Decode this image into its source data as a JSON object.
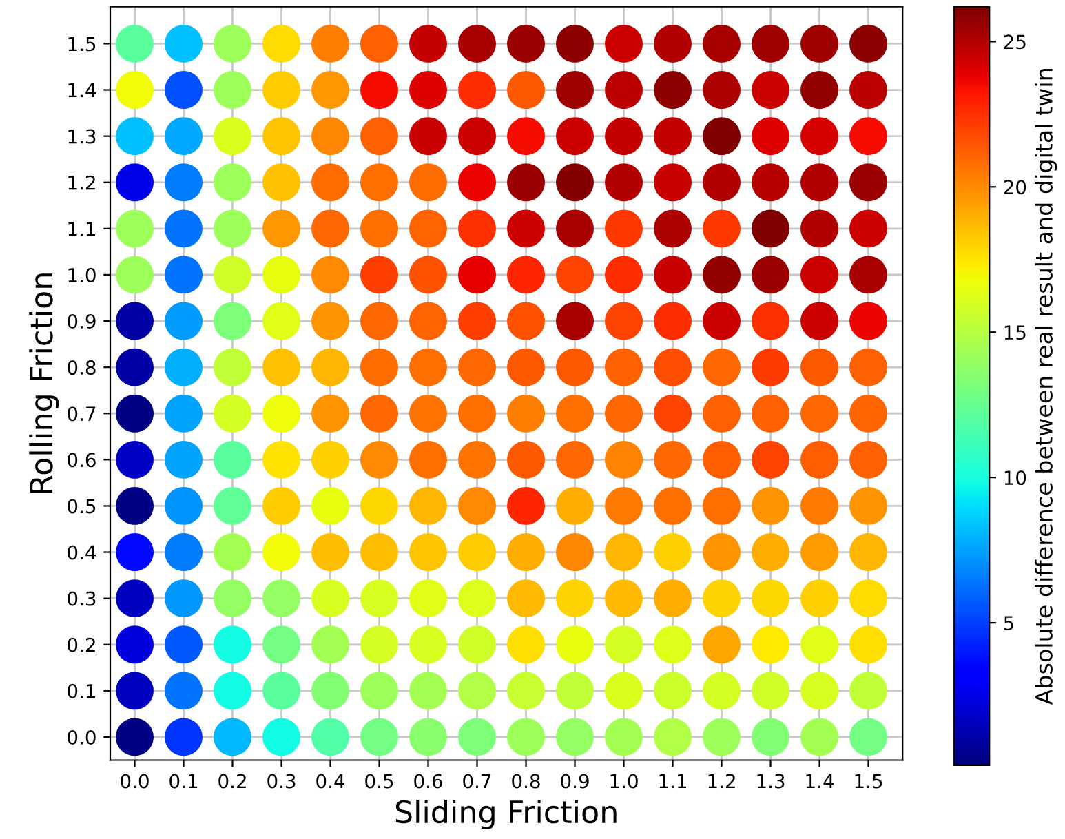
{
  "chart_data": {
    "type": "scatter",
    "xlabel": "Sliding Friction",
    "ylabel": "Rolling Friction",
    "clabel": "Absolute difference between real result and digital twin",
    "clim": [
      0.1,
      26.2
    ],
    "cticks": [
      5,
      10,
      15,
      20,
      25
    ],
    "xlim": [
      -0.05,
      1.57
    ],
    "ylim": [
      -0.05,
      1.58
    ],
    "xticks": [
      {
        "value": 0,
        "label": "0.0"
      },
      0.1,
      0.2,
      0.3,
      0.4,
      0.5,
      0.6,
      0.7,
      0.8,
      0.9,
      {
        "value": 1,
        "label": "1.0"
      },
      1.1,
      1.2,
      1.3,
      1.4,
      1.5
    ],
    "yticks": [
      {
        "value": 0,
        "label": "0.0"
      },
      0.1,
      0.2,
      0.3,
      0.4,
      0.5,
      0.6,
      0.7,
      0.8,
      0.9,
      {
        "value": 1,
        "label": "1.0"
      },
      1.1,
      1.2,
      1.3,
      1.4,
      1.5
    ],
    "grid": true,
    "marker": "circle",
    "x": [
      0.0,
      0.1,
      0.2,
      0.3,
      0.4,
      0.5,
      0.6,
      0.7,
      0.8,
      0.9,
      1.0,
      1.1,
      1.2,
      1.3,
      1.4,
      1.5,
      0.0,
      0.1,
      0.2,
      0.3,
      0.4,
      0.5,
      0.6,
      0.7,
      0.8,
      0.9,
      1.0,
      1.1,
      1.2,
      1.3,
      1.4,
      1.5,
      0.0,
      0.1,
      0.2,
      0.3,
      0.4,
      0.5,
      0.6,
      0.7,
      0.8,
      0.9,
      1.0,
      1.1,
      1.2,
      1.3,
      1.4,
      1.5,
      0.0,
      0.1,
      0.2,
      0.3,
      0.4,
      0.5,
      0.6,
      0.7,
      0.8,
      0.9,
      1.0,
      1.1,
      1.2,
      1.3,
      1.4,
      1.5,
      0.0,
      0.1,
      0.2,
      0.3,
      0.4,
      0.5,
      0.6,
      0.7,
      0.8,
      0.9,
      1.0,
      1.1,
      1.2,
      1.3,
      1.4,
      1.5,
      0.0,
      0.1,
      0.2,
      0.3,
      0.4,
      0.5,
      0.6,
      0.7,
      0.8,
      0.9,
      1.0,
      1.1,
      1.2,
      1.3,
      1.4,
      1.5,
      0.0,
      0.1,
      0.2,
      0.3,
      0.4,
      0.5,
      0.6,
      0.7,
      0.8,
      0.9,
      1.0,
      1.1,
      1.2,
      1.3,
      1.4,
      1.5,
      0.0,
      0.1,
      0.2,
      0.3,
      0.4,
      0.5,
      0.6,
      0.7,
      0.8,
      0.9,
      1.0,
      1.1,
      1.2,
      1.3,
      1.4,
      1.5,
      0.0,
      0.1,
      0.2,
      0.3,
      0.4,
      0.5,
      0.6,
      0.7,
      0.8,
      0.9,
      1.0,
      1.1,
      1.2,
      1.3,
      1.4,
      1.5,
      0.0,
      0.1,
      0.2,
      0.3,
      0.4,
      0.5,
      0.6,
      0.7,
      0.8,
      0.9,
      1.0,
      1.1,
      1.2,
      1.3,
      1.4,
      1.5,
      0.0,
      0.1,
      0.2,
      0.3,
      0.4,
      0.5,
      0.6,
      0.7,
      0.8,
      0.9,
      1.0,
      1.1,
      1.2,
      1.3,
      1.4,
      1.5,
      0.0,
      0.1,
      0.2,
      0.3,
      0.4,
      0.5,
      0.6,
      0.7,
      0.8,
      0.9,
      1.0,
      1.1,
      1.2,
      1.3,
      1.4,
      1.5,
      0.0,
      0.1,
      0.2,
      0.3,
      0.4,
      0.5,
      0.6,
      0.7,
      0.8,
      0.9,
      1.0,
      1.1,
      1.2,
      1.3,
      1.4,
      1.5,
      0.0,
      0.1,
      0.2,
      0.3,
      0.4,
      0.5,
      0.6,
      0.7,
      0.8,
      0.9,
      1.0,
      1.1,
      1.2,
      1.3,
      1.4,
      1.5,
      0.0,
      0.1,
      0.2,
      0.3,
      0.4,
      0.5,
      0.6,
      0.7,
      0.8,
      0.9,
      1.0,
      1.1,
      1.2,
      1.3,
      1.4,
      1.5,
      0.0,
      0.1,
      0.2,
      0.3,
      0.4,
      0.5,
      0.6,
      0.7,
      0.8,
      0.9,
      1.0,
      1.1,
      1.2,
      1.3,
      1.4,
      1.5
    ],
    "values": [
      0.0,
      0.0,
      0.0,
      0.0,
      0.0,
      0.0,
      0.0,
      0.0,
      0.0,
      0.0,
      0.0,
      0.0,
      0.0,
      0.0,
      0.0,
      0.0,
      0.1,
      0.1,
      0.1,
      0.1,
      0.1,
      0.1,
      0.1,
      0.1,
      0.1,
      0.1,
      0.1,
      0.1,
      0.1,
      0.1,
      0.1,
      0.1,
      0.2,
      0.2,
      0.2,
      0.2,
      0.2,
      0.2,
      0.2,
      0.2,
      0.2,
      0.2,
      0.2,
      0.2,
      0.2,
      0.2,
      0.2,
      0.2,
      0.3,
      0.3,
      0.3,
      0.3,
      0.3,
      0.3,
      0.3,
      0.3,
      0.3,
      0.3,
      0.3,
      0.3,
      0.3,
      0.3,
      0.3,
      0.3,
      0.4,
      0.4,
      0.4,
      0.4,
      0.4,
      0.4,
      0.4,
      0.4,
      0.4,
      0.4,
      0.4,
      0.4,
      0.4,
      0.4,
      0.4,
      0.4,
      0.5,
      0.5,
      0.5,
      0.5,
      0.5,
      0.5,
      0.5,
      0.5,
      0.5,
      0.5,
      0.5,
      0.5,
      0.5,
      0.5,
      0.5,
      0.5,
      0.6,
      0.6,
      0.6,
      0.6,
      0.6,
      0.6,
      0.6,
      0.6,
      0.6,
      0.6,
      0.6,
      0.6,
      0.6,
      0.6,
      0.6,
      0.6,
      0.7,
      0.7,
      0.7,
      0.7,
      0.7,
      0.7,
      0.7,
      0.7,
      0.7,
      0.7,
      0.7,
      0.7,
      0.7,
      0.7,
      0.7,
      0.7,
      0.8,
      0.8,
      0.8,
      0.8,
      0.8,
      0.8,
      0.8,
      0.8,
      0.8,
      0.8,
      0.8,
      0.8,
      0.8,
      0.8,
      0.8,
      0.8,
      0.9,
      0.9,
      0.9,
      0.9,
      0.9,
      0.9,
      0.9,
      0.9,
      0.9,
      0.9,
      0.9,
      0.9,
      0.9,
      0.9,
      0.9,
      0.9,
      1.0,
      1.0,
      1.0,
      1.0,
      1.0,
      1.0,
      1.0,
      1.0,
      1.0,
      1.0,
      1.0,
      1.0,
      1.0,
      1.0,
      1.0,
      1.0,
      1.1,
      1.1,
      1.1,
      1.1,
      1.1,
      1.1,
      1.1,
      1.1,
      1.1,
      1.1,
      1.1,
      1.1,
      1.1,
      1.1,
      1.1,
      1.1,
      1.2,
      1.2,
      1.2,
      1.2,
      1.2,
      1.2,
      1.2,
      1.2,
      1.2,
      1.2,
      1.2,
      1.2,
      1.2,
      1.2,
      1.2,
      1.2,
      1.3,
      1.3,
      1.3,
      1.3,
      1.3,
      1.3,
      1.3,
      1.3,
      1.3,
      1.3,
      1.3,
      1.3,
      1.3,
      1.3,
      1.3,
      1.3,
      1.4,
      1.4,
      1.4,
      1.4,
      1.4,
      1.4,
      1.4,
      1.4,
      1.4,
      1.4,
      1.4,
      1.4,
      1.4,
      1.4,
      1.4,
      1.4,
      1.5,
      1.5,
      1.5,
      1.5,
      1.5,
      1.5,
      1.5,
      1.5,
      1.5,
      1.5,
      1.5,
      1.5,
      1.5,
      1.5,
      1.5,
      1.5
    ],
    "cvalues": [
      0.3,
      4.7,
      8.1,
      9.8,
      11.8,
      12.9,
      13.6,
      13.2,
      14.2,
      13.9,
      14.4,
      14.8,
      14.2,
      13.4,
      14.4,
      12.9,
      1.6,
      6.4,
      9.8,
      12.1,
      13.4,
      14.2,
      14.4,
      14.8,
      15.5,
      15.3,
      16.2,
      15.6,
      16.0,
      15.8,
      16.1,
      15.3,
      2.3,
      5.7,
      9.8,
      12.9,
      14.4,
      16.0,
      16.1,
      15.8,
      17.7,
      16.6,
      16.0,
      16.3,
      19.2,
      17.4,
      16.4,
      17.7,
      1.6,
      7.3,
      13.9,
      13.9,
      16.1,
      16.1,
      16.4,
      16.3,
      18.7,
      18.0,
      18.7,
      19.0,
      18.0,
      17.9,
      18.1,
      17.8,
      3.6,
      6.6,
      14.4,
      16.9,
      18.6,
      18.6,
      18.4,
      18.2,
      19.0,
      20.1,
      18.8,
      18.1,
      19.7,
      19.0,
      19.5,
      18.8,
      0.3,
      7.2,
      12.3,
      18.2,
      16.6,
      17.9,
      18.8,
      20.0,
      22.8,
      19.0,
      20.4,
      20.7,
      20.7,
      19.7,
      20.4,
      19.7,
      1.7,
      7.6,
      12.1,
      17.6,
      18.1,
      20.0,
      20.7,
      20.6,
      21.4,
      21.0,
      20.2,
      21.0,
      21.3,
      22.0,
      21.3,
      21.2,
      0.3,
      7.6,
      16.0,
      16.8,
      19.7,
      21.0,
      20.6,
      20.7,
      20.3,
      20.7,
      21.0,
      22.0,
      21.2,
      21.2,
      21.0,
      21.1,
      1.0,
      7.9,
      15.3,
      18.5,
      18.8,
      20.8,
      20.7,
      21.0,
      21.4,
      21.4,
      21.2,
      21.7,
      21.0,
      22.2,
      21.4,
      21.2,
      1.0,
      7.4,
      13.2,
      16.4,
      19.7,
      21.0,
      21.1,
      22.1,
      21.6,
      25.2,
      22.0,
      22.6,
      24.4,
      22.5,
      24.4,
      23.7,
      14.2,
      6.4,
      15.8,
      16.6,
      20.0,
      22.1,
      21.6,
      23.8,
      22.8,
      22.0,
      22.6,
      24.5,
      25.7,
      25.5,
      24.4,
      25.2,
      14.2,
      6.4,
      14.2,
      19.6,
      21.0,
      20.7,
      21.1,
      22.5,
      24.4,
      25.2,
      22.3,
      25.1,
      22.3,
      26.1,
      25.0,
      24.4,
      2.5,
      6.6,
      14.2,
      18.5,
      20.8,
      20.7,
      20.8,
      23.7,
      25.5,
      26.0,
      25.0,
      24.5,
      25.0,
      24.9,
      25.0,
      25.5,
      8.3,
      7.7,
      16.2,
      18.4,
      20.1,
      21.2,
      24.5,
      24.4,
      23.5,
      24.4,
      24.6,
      24.6,
      26.2,
      24.0,
      24.2,
      23.5,
      16.9,
      5.5,
      14.2,
      18.2,
      19.6,
      23.5,
      24.0,
      22.6,
      21.4,
      25.4,
      24.8,
      25.8,
      25.1,
      24.4,
      25.7,
      24.8,
      12.1,
      8.3,
      14.2,
      17.8,
      20.3,
      21.2,
      24.6,
      25.2,
      25.5,
      25.8,
      24.4,
      25.0,
      25.2,
      25.4,
      25.4,
      25.8
    ]
  }
}
